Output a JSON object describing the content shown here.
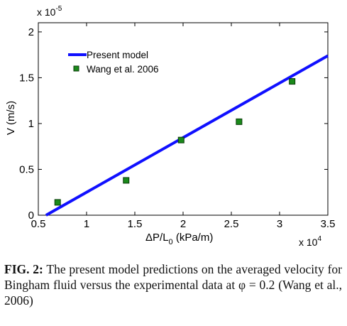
{
  "chart_data": {
    "type": "line",
    "xlabel_main": "ΔP/L",
    "xlabel_sub": "0",
    "xlabel_unit": " (kPa/m)",
    "ylabel": "V (m/s)",
    "x_multiplier": "x 10",
    "x_multiplier_exp": "4",
    "y_multiplier": "x 10",
    "y_multiplier_exp": "-5",
    "xlim": [
      0.5,
      3.5
    ],
    "ylim": [
      0,
      2.1
    ],
    "x_ticks": [
      0.5,
      1,
      1.5,
      2,
      2.5,
      3,
      3.5
    ],
    "y_ticks": [
      0,
      0.5,
      1,
      1.5,
      2
    ],
    "x_tick_labels": [
      "0.5",
      "1",
      "1.5",
      "2",
      "2.5",
      "3",
      "3.5"
    ],
    "y_tick_labels": [
      "0",
      "0.5",
      "1",
      "1.5",
      "2"
    ],
    "legend_position": "top-left",
    "series": [
      {
        "name": "Present model",
        "kind": "line",
        "color": "#1010ff",
        "x": [
          0.58,
          3.5
        ],
        "y": [
          0.0,
          1.74
        ]
      },
      {
        "name": "Wang et al. 2006",
        "kind": "scatter",
        "color": "#1a8a1a",
        "x": [
          0.7,
          1.41,
          1.98,
          2.58,
          3.13
        ],
        "y": [
          0.14,
          0.38,
          0.82,
          1.02,
          1.46
        ]
      }
    ]
  },
  "caption": {
    "label": "FIG. 2:",
    "text": " The present model predictions on the averaged velocity for Bingham fluid versus the experimental data at φ = 0.2 (Wang et al., 2006)"
  }
}
